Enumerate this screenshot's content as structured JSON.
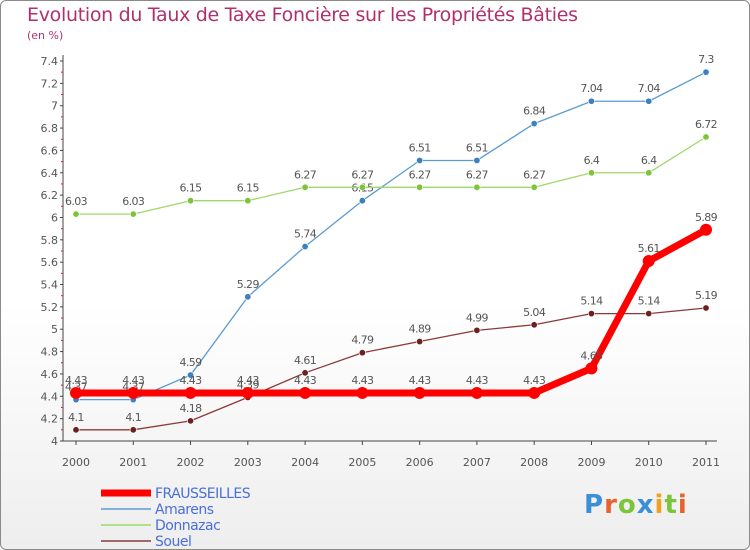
{
  "chart_data": {
    "type": "line",
    "title": "Evolution du Taux de Taxe Foncière sur les Propriétés Bâties",
    "unit_label": "(en %)",
    "x": [
      "2000",
      "2001",
      "2002",
      "2003",
      "2004",
      "2005",
      "2006",
      "2007",
      "2008",
      "2009",
      "2010",
      "2011"
    ],
    "y_ticks": [
      "4",
      "4.2",
      "4.4",
      "4.6",
      "4.8",
      "5",
      "5.2",
      "5.4",
      "5.6",
      "5.8",
      "6",
      "6.2",
      "6.4",
      "6.6",
      "6.8",
      "7",
      "7.2",
      "7.4"
    ],
    "ylim": [
      4,
      7.4
    ],
    "series": [
      {
        "name": "Amarens",
        "color": "#5a9bd4",
        "point_color": "#3d7fc0",
        "values": [
          4.37,
          4.37,
          4.59,
          5.29,
          5.74,
          6.15,
          6.51,
          6.51,
          6.84,
          7.04,
          7.04,
          7.3
        ],
        "labels": [
          "4.37",
          "4.37",
          "4.59",
          "5.29",
          "5.74",
          "6.15",
          "6.51",
          "6.51",
          "6.84",
          "7.04",
          "7.04",
          "7.3"
        ]
      },
      {
        "name": "Donnazac",
        "color": "#9fd86a",
        "point_color": "#7cc43a",
        "values": [
          6.03,
          6.03,
          6.15,
          6.15,
          6.27,
          6.27,
          6.27,
          6.27,
          6.27,
          6.4,
          6.4,
          6.72
        ],
        "labels": [
          "6.03",
          "6.03",
          "6.15",
          "6.15",
          "6.27",
          "6.27",
          "6.27",
          "6.27",
          "6.27",
          "6.4",
          "6.4",
          "6.72"
        ]
      },
      {
        "name": "Souel",
        "color": "#8b3a3a",
        "point_color": "#6e1f1f",
        "values": [
          4.1,
          4.1,
          4.18,
          4.39,
          4.61,
          4.79,
          4.89,
          4.99,
          5.04,
          5.14,
          5.14,
          5.19
        ],
        "labels": [
          "4.1",
          "4.1",
          "4.18",
          "4.39",
          "4.61",
          "4.79",
          "4.89",
          "4.99",
          "5.04",
          "5.14",
          "5.14",
          "5.19"
        ]
      },
      {
        "name": "FRAUSSEILLES",
        "color": "#ff0000",
        "point_color": "#ff0000",
        "values": [
          4.43,
          4.43,
          4.43,
          4.43,
          4.43,
          4.43,
          4.43,
          4.43,
          4.43,
          4.65,
          5.61,
          5.89
        ],
        "labels": [
          "4.43",
          "4.43",
          "4.43",
          "4.43",
          "4.43",
          "4.43",
          "4.43",
          "4.43",
          "4.43",
          "4.65",
          "5.61",
          "5.89"
        ]
      }
    ],
    "legend": [
      "FRAUSSEILLES",
      "Amarens",
      "Donnazac",
      "Souel"
    ],
    "legend_position": "bottom-left",
    "grid": false
  },
  "logo": {
    "text": "Proxiti",
    "letters": [
      "P",
      "r",
      "o",
      "x",
      "i",
      "t",
      "i"
    ],
    "colors": [
      "#3a8fd8",
      "#e8632c",
      "#7cc43a",
      "#3a8fd8",
      "#f0a21c",
      "#7cc43a",
      "#e8632c"
    ]
  },
  "colors": {
    "title": "#b0306e",
    "axis": "#555555",
    "tick_red": "#cc2222",
    "label": "#555555"
  }
}
